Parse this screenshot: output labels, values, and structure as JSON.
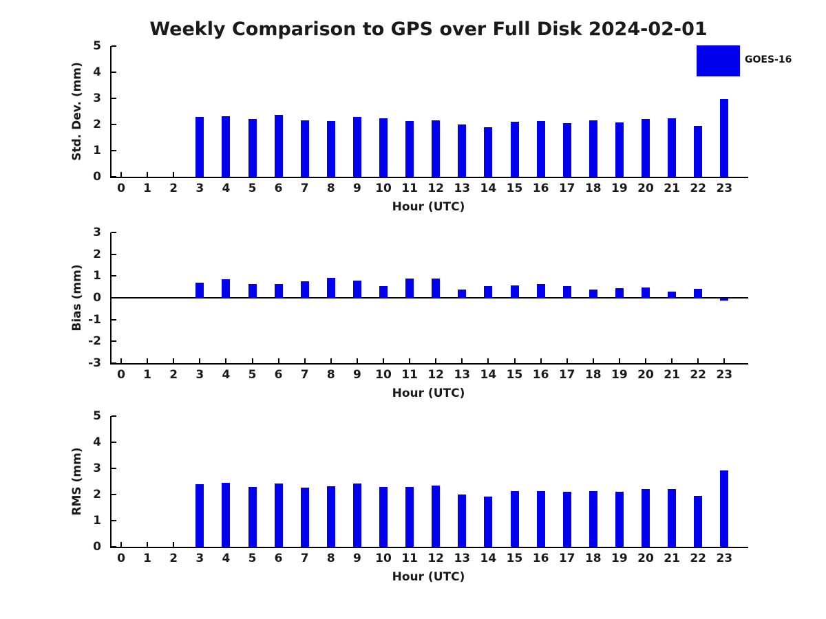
{
  "title": "Weekly Comparison to GPS over Full Disk 2024-02-01",
  "legend": {
    "label": "GOES-16",
    "color": "#0000ee",
    "position": "top-right-outside"
  },
  "chart_data": [
    {
      "type": "bar",
      "name": "std-dev-subplot",
      "ylabel": "Std. Dev. (mm)",
      "xlabel": "Hour (UTC)",
      "series_name": "GOES-16",
      "bar_color": "#0000ee",
      "grid": false,
      "ylim": [
        0,
        5
      ],
      "yticks": [
        0,
        1,
        2,
        3,
        4,
        5
      ],
      "x": [
        0,
        1,
        2,
        3,
        4,
        5,
        6,
        7,
        8,
        9,
        10,
        11,
        12,
        13,
        14,
        15,
        16,
        17,
        18,
        19,
        20,
        21,
        22,
        23
      ],
      "values": [
        null,
        null,
        null,
        2.3,
        2.33,
        2.22,
        2.36,
        2.15,
        2.12,
        2.28,
        2.25,
        2.12,
        2.17,
        2.0,
        1.9,
        2.11,
        2.12,
        2.06,
        2.16,
        2.09,
        2.21,
        2.24,
        1.95,
        2.98
      ]
    },
    {
      "type": "bar",
      "name": "bias-subplot",
      "ylabel": "Bias (mm)",
      "xlabel": "Hour (UTC)",
      "series_name": "GOES-16",
      "bar_color": "#0000ee",
      "grid": false,
      "ylim": [
        -3,
        3
      ],
      "yticks": [
        3,
        2,
        1,
        0,
        -1,
        -2,
        -3
      ],
      "zero_line": true,
      "x": [
        0,
        1,
        2,
        3,
        4,
        5,
        6,
        7,
        8,
        9,
        10,
        11,
        12,
        13,
        14,
        15,
        16,
        17,
        18,
        19,
        20,
        21,
        22,
        23
      ],
      "values": [
        null,
        null,
        null,
        0.7,
        0.87,
        0.62,
        0.62,
        0.75,
        0.92,
        0.8,
        0.53,
        0.9,
        0.9,
        0.38,
        0.53,
        0.56,
        0.63,
        0.54,
        0.38,
        0.44,
        0.47,
        0.28,
        0.41,
        -0.12
      ]
    },
    {
      "type": "bar",
      "name": "rms-subplot",
      "ylabel": "RMS (mm)",
      "xlabel": "Hour (UTC)",
      "series_name": "GOES-16",
      "bar_color": "#0000ee",
      "grid": false,
      "ylim": [
        0,
        5
      ],
      "yticks": [
        0,
        1,
        2,
        3,
        4,
        5
      ],
      "x": [
        0,
        1,
        2,
        3,
        4,
        5,
        6,
        7,
        8,
        9,
        10,
        11,
        12,
        13,
        14,
        15,
        16,
        17,
        18,
        19,
        20,
        21,
        22,
        23
      ],
      "values": [
        null,
        null,
        null,
        2.39,
        2.46,
        2.29,
        2.41,
        2.26,
        2.31,
        2.41,
        2.3,
        2.29,
        2.35,
        2.01,
        1.91,
        2.14,
        2.13,
        2.1,
        2.14,
        2.1,
        2.21,
        2.22,
        1.96,
        2.92
      ]
    }
  ]
}
